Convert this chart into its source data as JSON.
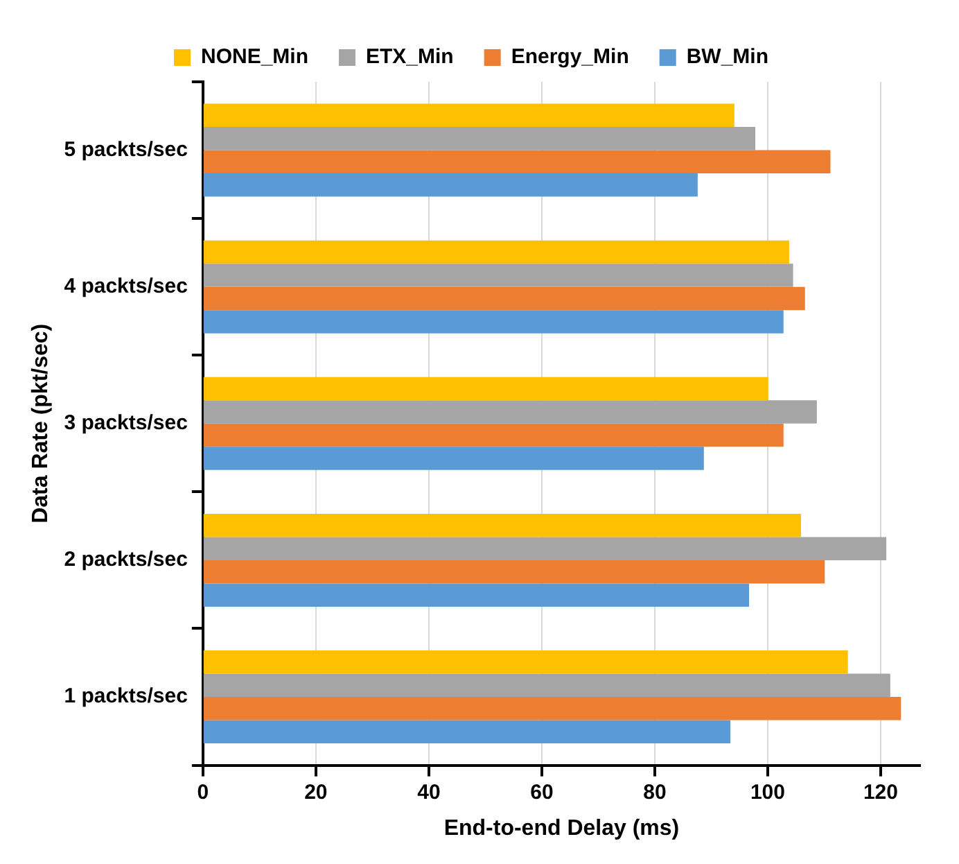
{
  "chart_data": {
    "type": "bar",
    "orientation": "horizontal",
    "xlabel": "End-to-end Delay (ms)",
    "ylabel": "Data Rate (pkt/sec)",
    "categories": [
      "5 packts/sec",
      "4 packts/sec",
      "3 packts/sec",
      "2 packts/sec",
      "1 packts/sec"
    ],
    "series": [
      {
        "name": "NONE_Min",
        "color": "#ffc000",
        "values": [
          94.1,
          103.8,
          100.1,
          105.9,
          114.2
        ]
      },
      {
        "name": "ETX_Min",
        "color": "#a5a5a5",
        "values": [
          97.8,
          104.5,
          108.7,
          121.0,
          121.7
        ]
      },
      {
        "name": "Energy_Min",
        "color": "#ed7d31",
        "values": [
          111.1,
          106.6,
          102.8,
          110.1,
          123.6
        ]
      },
      {
        "name": "BW_Min",
        "color": "#5b9bd5",
        "values": [
          87.6,
          102.8,
          88.7,
          96.7,
          93.4
        ]
      }
    ],
    "xlim": [
      0,
      127
    ],
    "xticks": [
      0,
      20,
      40,
      60,
      80,
      100,
      120
    ],
    "grid": "x",
    "legend": "top"
  }
}
